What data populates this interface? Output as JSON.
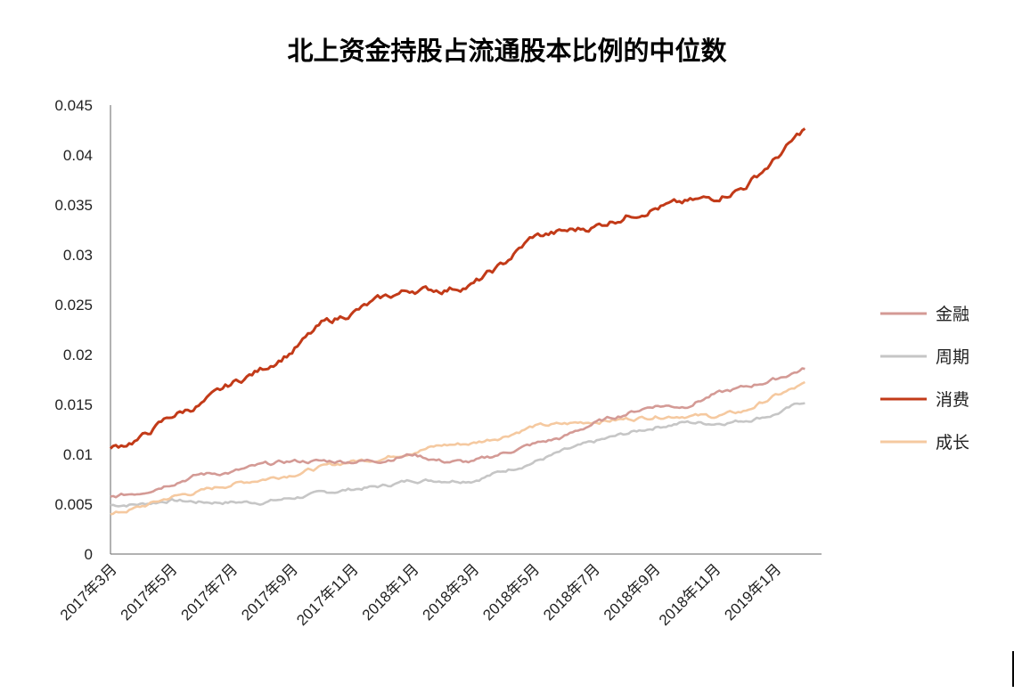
{
  "chart_data": {
    "type": "line",
    "title": "北上资金持股占流通股本比例的中位数",
    "xlabel": "",
    "ylabel": "",
    "x_tick_labels": [
      "2017年3月",
      "2017年5月",
      "2017年7月",
      "2017年9月",
      "2017年11月",
      "2018年1月",
      "2018年3月",
      "2018年5月",
      "2018年7月",
      "2018年9月",
      "2018年11月",
      "2019年1月"
    ],
    "y_tick_labels": [
      "0",
      "0.005",
      "0.01",
      "0.015",
      "0.02",
      "0.025",
      "0.03",
      "0.035",
      "0.04",
      "0.045"
    ],
    "ylim": [
      0,
      0.045
    ],
    "x_range_months": [
      "2017-03",
      "2019-02"
    ],
    "grid": false,
    "legend_position": "right",
    "series": [
      {
        "name": "金融",
        "color": "#d49a95",
        "x": [
          "2017-03",
          "2017-04",
          "2017-05",
          "2017-06",
          "2017-07",
          "2017-08",
          "2017-09",
          "2017-10",
          "2017-11",
          "2017-12",
          "2018-01",
          "2018-02",
          "2018-03",
          "2018-04",
          "2018-05",
          "2018-06",
          "2018-07",
          "2018-08",
          "2018-09",
          "2018-10",
          "2018-11",
          "2018-12",
          "2019-01",
          "2019-02"
        ],
        "values": [
          0.0057,
          0.0062,
          0.0071,
          0.008,
          0.0082,
          0.0089,
          0.0093,
          0.0093,
          0.0093,
          0.0094,
          0.01,
          0.0093,
          0.0092,
          0.0101,
          0.011,
          0.0117,
          0.0131,
          0.014,
          0.0149,
          0.0148,
          0.016,
          0.0167,
          0.0175,
          0.0186
        ]
      },
      {
        "name": "周期",
        "color": "#c6c6c6",
        "x": [
          "2017-03",
          "2017-04",
          "2017-05",
          "2017-06",
          "2017-07",
          "2017-08",
          "2017-09",
          "2017-10",
          "2017-11",
          "2017-12",
          "2018-01",
          "2018-02",
          "2018-03",
          "2018-04",
          "2018-05",
          "2018-06",
          "2018-07",
          "2018-08",
          "2018-09",
          "2018-10",
          "2018-11",
          "2018-12",
          "2019-01",
          "2019-02"
        ],
        "values": [
          0.0049,
          0.005,
          0.0054,
          0.0052,
          0.0052,
          0.0052,
          0.0056,
          0.0061,
          0.0065,
          0.0068,
          0.0074,
          0.0074,
          0.0074,
          0.0083,
          0.0092,
          0.0103,
          0.0112,
          0.012,
          0.0127,
          0.0132,
          0.0131,
          0.0134,
          0.014,
          0.0153
        ]
      },
      {
        "name": "消费",
        "color": "#c23a18",
        "x": [
          "2017-03",
          "2017-04",
          "2017-05",
          "2017-06",
          "2017-07",
          "2017-08",
          "2017-09",
          "2017-10",
          "2017-11",
          "2017-12",
          "2018-01",
          "2018-02",
          "2018-03",
          "2018-04",
          "2018-05",
          "2018-06",
          "2018-07",
          "2018-08",
          "2018-09",
          "2018-10",
          "2018-11",
          "2018-12",
          "2019-01",
          "2019-02"
        ],
        "values": [
          0.0105,
          0.0116,
          0.0138,
          0.015,
          0.017,
          0.0185,
          0.0203,
          0.023,
          0.0242,
          0.0256,
          0.0265,
          0.0265,
          0.027,
          0.029,
          0.0318,
          0.0323,
          0.0328,
          0.0338,
          0.0347,
          0.0352,
          0.0357,
          0.0368,
          0.0395,
          0.0426
        ]
      },
      {
        "name": "成长",
        "color": "#f5c9a0",
        "x": [
          "2017-03",
          "2017-04",
          "2017-05",
          "2017-06",
          "2017-07",
          "2017-08",
          "2017-09",
          "2017-10",
          "2017-11",
          "2017-12",
          "2018-01",
          "2018-02",
          "2018-03",
          "2018-04",
          "2018-05",
          "2018-06",
          "2018-07",
          "2018-08",
          "2018-09",
          "2018-10",
          "2018-11",
          "2018-12",
          "2019-01",
          "2019-02"
        ],
        "values": [
          0.0039,
          0.0047,
          0.0057,
          0.0063,
          0.007,
          0.0075,
          0.008,
          0.0087,
          0.0093,
          0.0096,
          0.0103,
          0.0109,
          0.0111,
          0.0118,
          0.0128,
          0.013,
          0.0133,
          0.0135,
          0.0138,
          0.0139,
          0.0138,
          0.0143,
          0.0158,
          0.017
        ]
      }
    ]
  }
}
